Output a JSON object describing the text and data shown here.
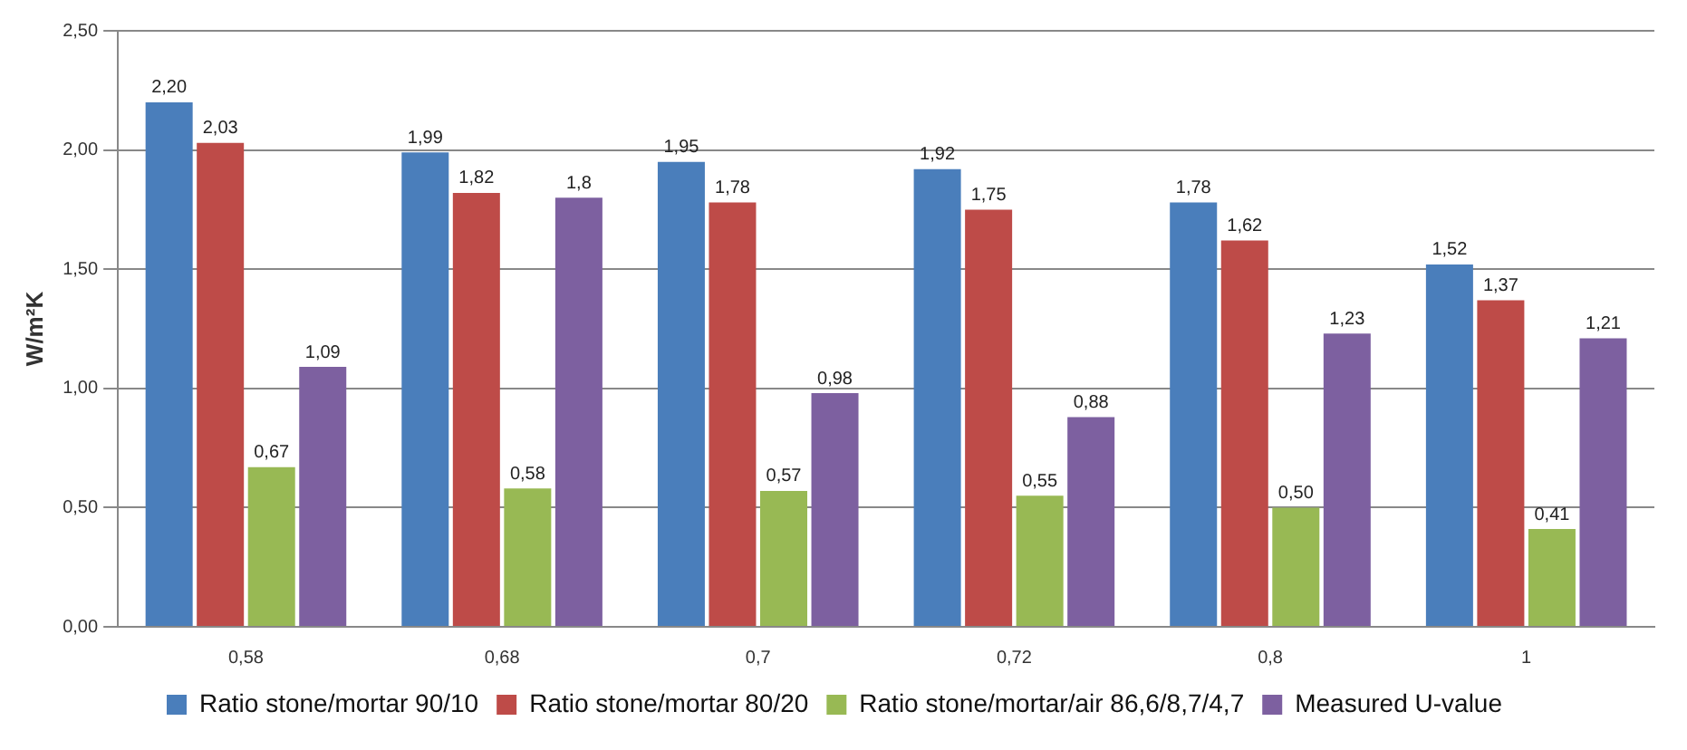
{
  "chart_data": {
    "type": "bar",
    "ylabel": "W/m²K",
    "categories": [
      "0,58",
      "0,68",
      "0,7",
      "0,72",
      "0,8",
      "1"
    ],
    "series": [
      {
        "name": "Ratio stone/mortar 90/10",
        "color": "#4a7ebb",
        "values": [
          2.2,
          1.99,
          1.95,
          1.92,
          1.78,
          1.52
        ],
        "value_labels": [
          "2,20",
          "1,99",
          "1,95",
          "1,92",
          "1,78",
          "1,52"
        ]
      },
      {
        "name": "Ratio stone/mortar 80/20",
        "color": "#be4b48",
        "values": [
          2.03,
          1.82,
          1.78,
          1.75,
          1.62,
          1.37
        ],
        "value_labels": [
          "2,03",
          "1,82",
          "1,78",
          "1,75",
          "1,62",
          "1,37"
        ]
      },
      {
        "name": "Ratio stone/mortar/air 86,6/8,7/4,7",
        "color": "#98b954",
        "values": [
          0.67,
          0.58,
          0.57,
          0.55,
          0.5,
          0.41
        ],
        "value_labels": [
          "0,67",
          "0,58",
          "0,57",
          "0,55",
          "0,50",
          "0,41"
        ]
      },
      {
        "name": "Measured U-value",
        "color": "#7d60a0",
        "values": [
          1.09,
          1.8,
          0.98,
          0.88,
          1.23,
          1.21
        ],
        "value_labels": [
          "1,09",
          "1,8",
          "0,98",
          "0,88",
          "1,23",
          "1,21"
        ]
      }
    ],
    "ylim": [
      0,
      2.5
    ],
    "yticks": [
      {
        "value": 0,
        "label": "0,00"
      },
      {
        "value": 0.5,
        "label": "0,50"
      },
      {
        "value": 1,
        "label": "1,00"
      },
      {
        "value": 1.5,
        "label": "1,50"
      },
      {
        "value": 2,
        "label": "2,00"
      },
      {
        "value": 2.5,
        "label": "2,50"
      }
    ],
    "grid": "y",
    "legend": "bottom"
  }
}
